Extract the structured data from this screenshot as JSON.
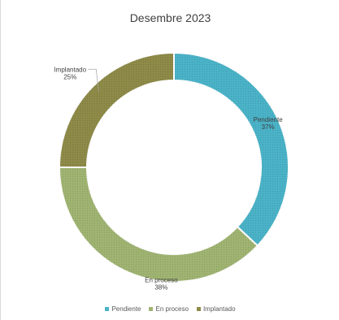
{
  "chart_data": {
    "type": "pie",
    "donut": true,
    "title": "Desembre 2023",
    "categories": [
      "Pendiente",
      "En proceso",
      "Implantado"
    ],
    "values": [
      37,
      38,
      25
    ],
    "labels": [
      "37%",
      "38%",
      "25%"
    ],
    "colors": [
      "#4bb3c8",
      "#a0b472",
      "#8e8a48"
    ],
    "legend_position": "bottom"
  }
}
